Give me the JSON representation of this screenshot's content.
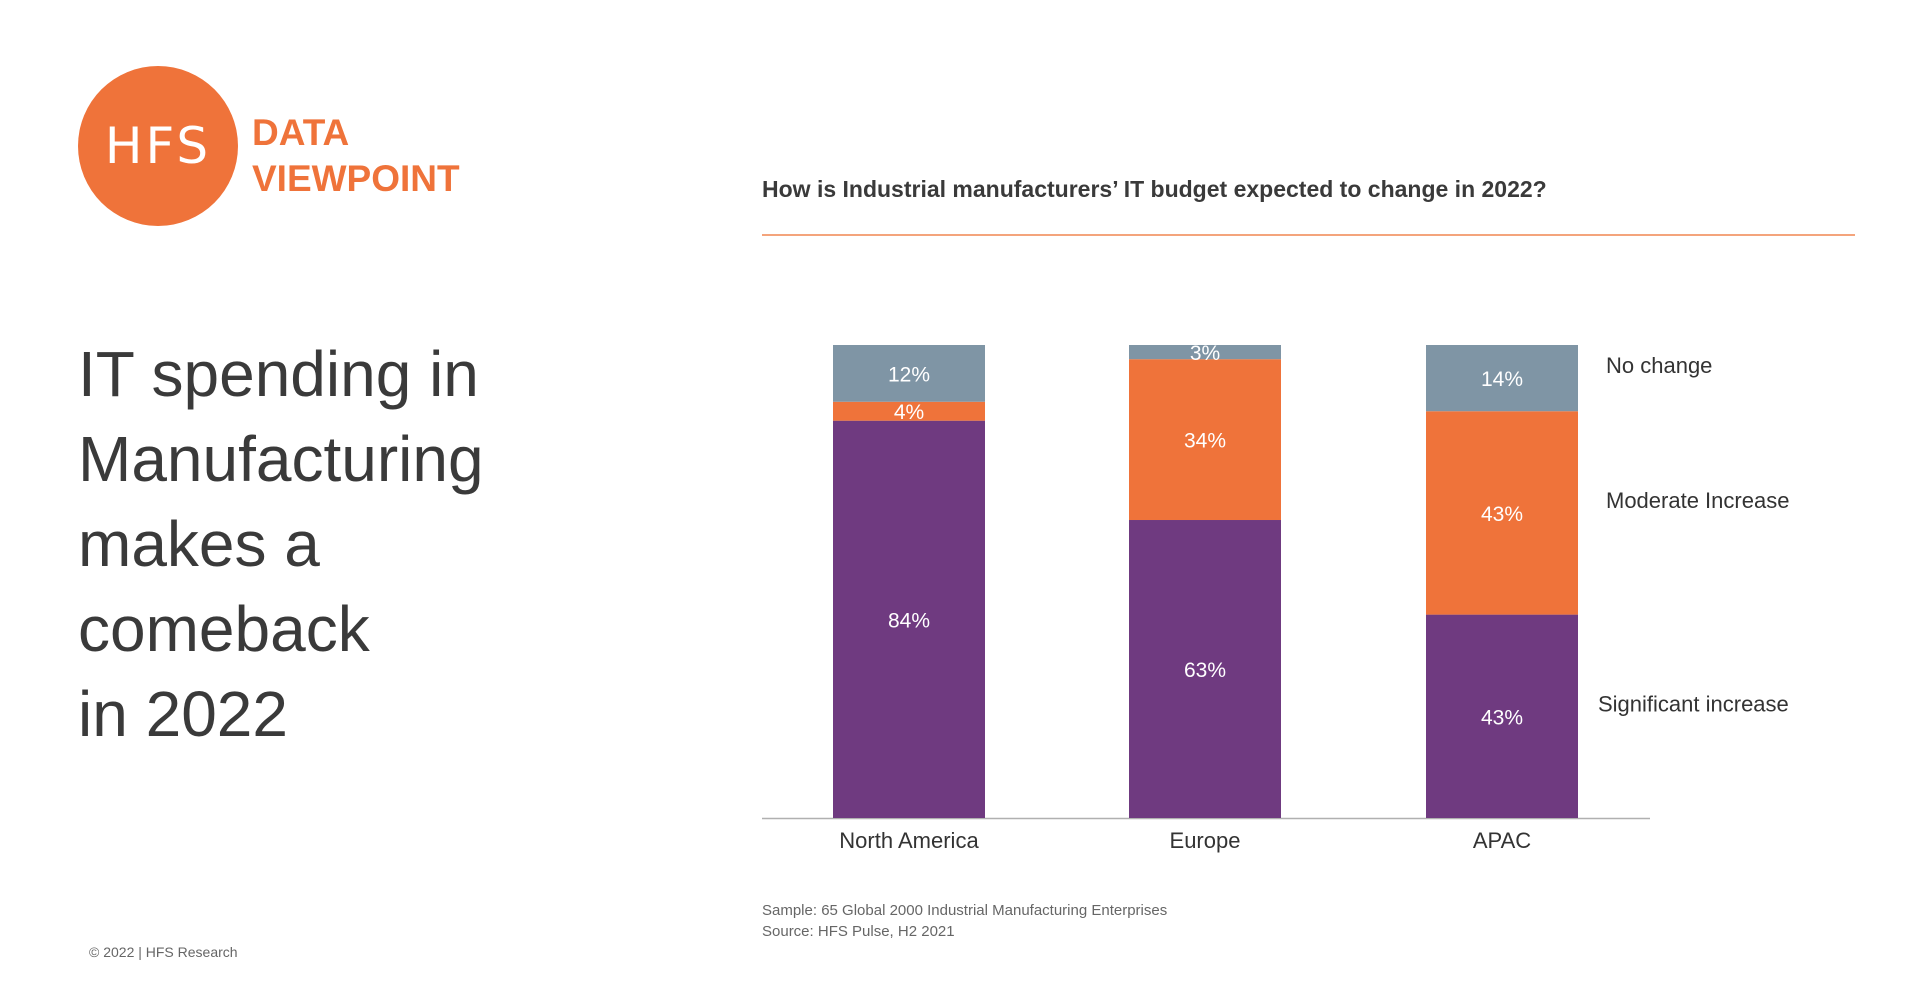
{
  "brand": {
    "logo_text": "HFS",
    "subtitle_line1": "DATA",
    "subtitle_line2": "VIEWPOINT",
    "accent_color": "#ef733a"
  },
  "headline": {
    "lines": [
      "IT spending in",
      "Manufacturing",
      "makes a",
      "comeback",
      "in 2022"
    ]
  },
  "footer": {
    "copyright": "© 2022 | HFS Research",
    "sample": "Sample: 65 Global 2000 Industrial Manufacturing Enterprises",
    "source": "Source: HFS Pulse, H2 2021"
  },
  "chart_data": {
    "type": "bar",
    "stacked": true,
    "title": "How is Industrial manufacturers’ IT budget expected to change in 2022?",
    "categories": [
      "North America",
      "Europe",
      "APAC"
    ],
    "series": [
      {
        "name": "Significant increase",
        "values": [
          84,
          63,
          43
        ],
        "labels": [
          "84%",
          "63%",
          "43%"
        ],
        "color": "#6f3a80"
      },
      {
        "name": "Moderate Increase",
        "values": [
          4,
          34,
          43
        ],
        "labels": [
          "4%",
          "34%",
          "43%"
        ],
        "color": "#ef733a"
      },
      {
        "name": "No change",
        "values": [
          12,
          3,
          14
        ],
        "labels": [
          "12%",
          "3%",
          "14%"
        ],
        "color": "#7f95a5"
      }
    ],
    "legend_position": "right",
    "ylim": [
      0,
      100
    ],
    "grid": false
  }
}
